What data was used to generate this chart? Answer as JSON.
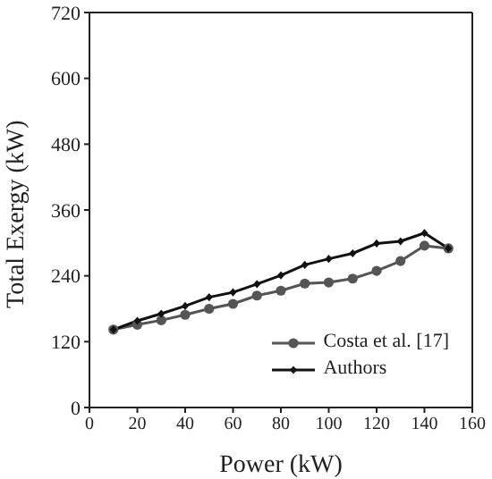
{
  "chart_data": {
    "type": "line",
    "xlabel": "Power (kW)",
    "ylabel": "Total Exergy (kW)",
    "x": [
      10,
      20,
      30,
      40,
      50,
      60,
      70,
      80,
      90,
      100,
      110,
      120,
      130,
      140,
      150
    ],
    "series": [
      {
        "name": "Costa et al. [17]",
        "color": "#555555",
        "marker": "circle",
        "values": [
          142,
          151,
          159,
          169,
          180,
          189,
          204,
          213,
          226,
          228,
          235,
          249,
          267,
          295,
          290
        ]
      },
      {
        "name": "Authors",
        "color": "#111111",
        "marker": "diamond",
        "values": [
          142,
          158,
          171,
          185,
          201,
          210,
          225,
          241,
          260,
          271,
          281,
          299,
          303,
          318,
          290
        ]
      }
    ],
    "xlim": [
      0,
      160
    ],
    "xticks": [
      0,
      20,
      40,
      60,
      80,
      100,
      120,
      140,
      160
    ],
    "ylim": [
      0,
      720
    ],
    "yticks": [
      0,
      120,
      240,
      360,
      480,
      600,
      720
    ],
    "grid": false,
    "legend": "bottom right",
    "line_style": "solid"
  }
}
